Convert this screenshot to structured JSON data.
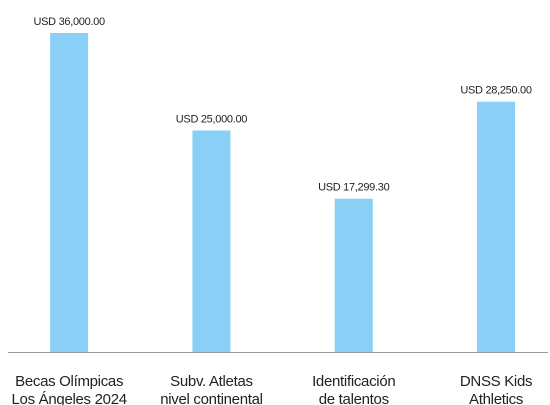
{
  "chart_data": {
    "type": "bar",
    "categories": [
      [
        "Becas Olímpicas",
        "Los Ángeles 2024"
      ],
      [
        "Subv. Atletas",
        "nivel continental"
      ],
      [
        "Identificación",
        "de talentos"
      ],
      [
        "DNSS Kids",
        "Athletics"
      ]
    ],
    "values": [
      36000,
      25000,
      17299.3,
      28250
    ],
    "value_labels": [
      "USD 36,000.00",
      "USD 25,000.00",
      "USD 17,299.30",
      "USD 28,250.00"
    ],
    "color": "#89cff6"
  }
}
